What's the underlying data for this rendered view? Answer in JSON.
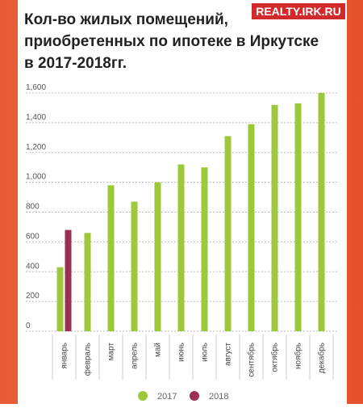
{
  "logo": "REALTY.IRK.RU",
  "chart_data": {
    "type": "bar",
    "title": "Кол-во жилых помещений, приобретенных по ипотеке в Иркутске в 2017-2018гг.",
    "title_lines": [
      "Кол-во жилых помещений,",
      "приобретенных по ипотеке в Иркутске",
      "в 2017-2018гг."
    ],
    "categories": [
      "январь",
      "февраль",
      "март",
      "апрель",
      "май",
      "июнь",
      "июль",
      "август",
      "сентябрь",
      "октябрь",
      "ноябрь",
      "декабрь"
    ],
    "series": [
      {
        "name": "2017",
        "color": "#9cc83a",
        "values": [
          430,
          660,
          980,
          870,
          1000,
          1120,
          1100,
          1310,
          1390,
          1520,
          1530,
          1600
        ]
      },
      {
        "name": "2018",
        "color": "#9e2f57",
        "values": [
          680,
          null,
          null,
          null,
          null,
          null,
          null,
          null,
          null,
          null,
          null,
          null
        ]
      }
    ],
    "ylim": [
      0,
      1600
    ],
    "yticks": [
      0,
      200,
      400,
      600,
      800,
      {
        "value": 1000,
        "label": "1,000"
      },
      {
        "value": 1200,
        "label": "1,200"
      },
      {
        "value": 1400,
        "label": "1,400"
      },
      {
        "value": 1600,
        "label": "1,600"
      }
    ],
    "grid": true,
    "legend": "bottom"
  }
}
